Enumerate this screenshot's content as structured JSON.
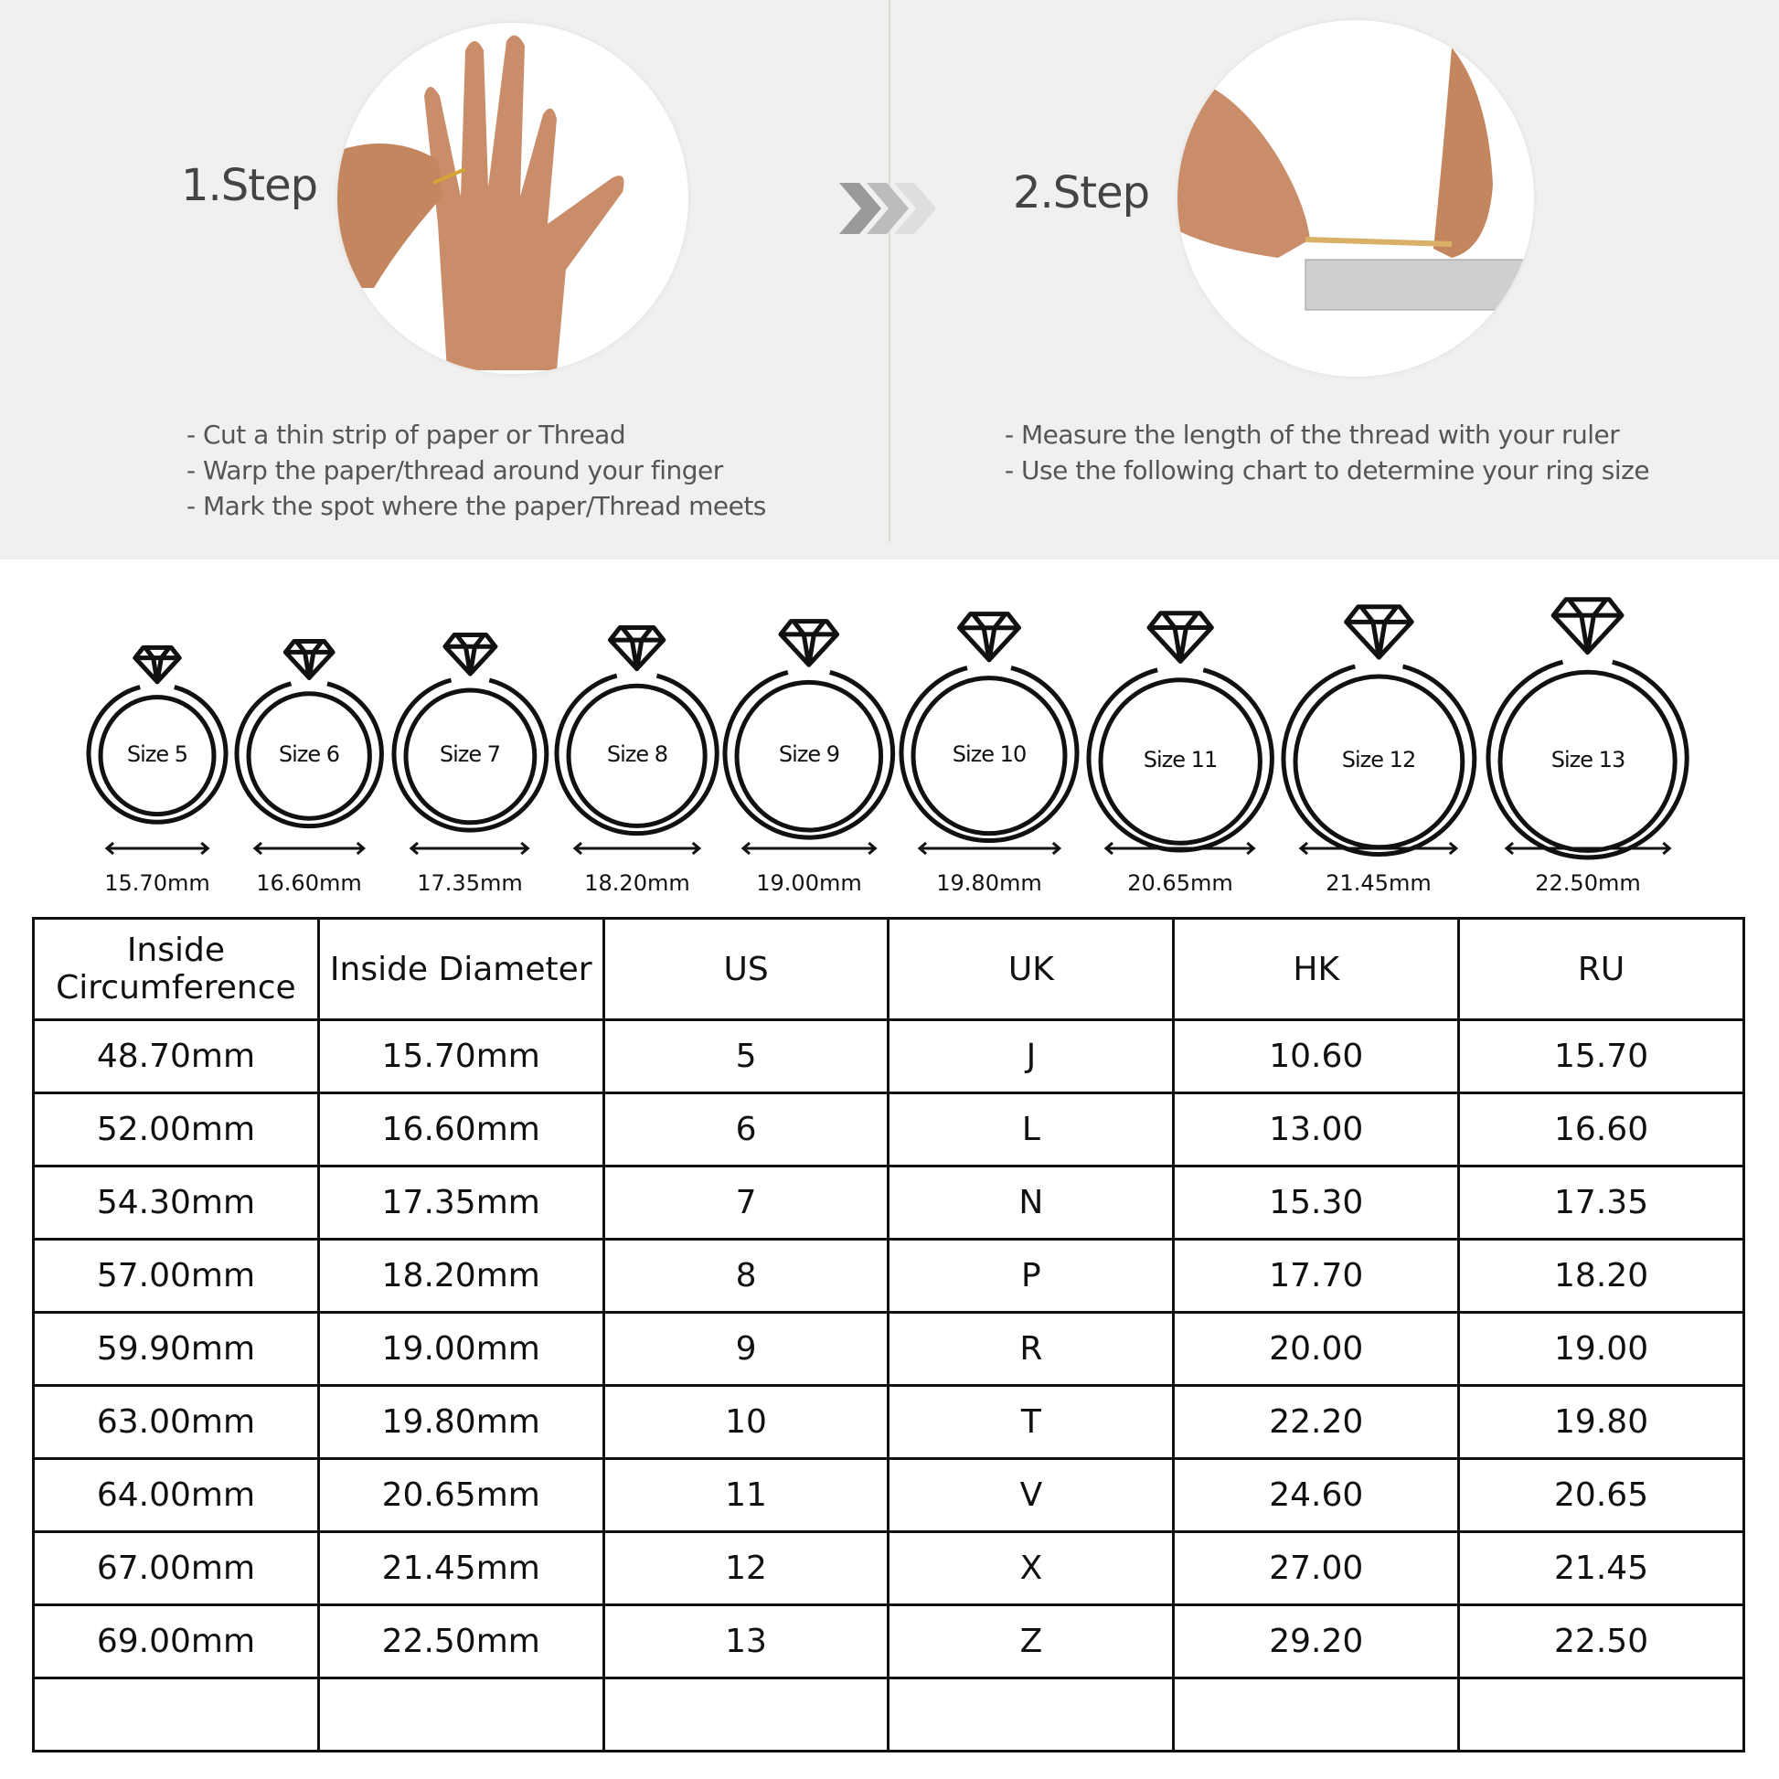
{
  "steps": [
    {
      "label": "1.Step",
      "lines": [
        "- Cut a thin strip of paper or Thread",
        "- Warp the paper/thread around your finger",
        "- Mark the spot where the paper/Thread meets"
      ],
      "image": "hand-wrapping-thread-photo"
    },
    {
      "label": "2.Step",
      "lines": [
        "- Measure the length of the thread with your ruler",
        "- Use the following chart to determine your ring size"
      ],
      "image": "thread-measured-with-ruler-photo"
    }
  ],
  "arrow_icon": "triple-chevron-right-icon",
  "rings": [
    {
      "label": "Size 5",
      "diameter": "15.70mm"
    },
    {
      "label": "Size 6",
      "diameter": "16.60mm"
    },
    {
      "label": "Size 7",
      "diameter": "17.35mm"
    },
    {
      "label": "Size 8",
      "diameter": "18.20mm"
    },
    {
      "label": "Size 9",
      "diameter": "19.00mm"
    },
    {
      "label": "Size 10",
      "diameter": "19.80mm"
    },
    {
      "label": "Size 11",
      "diameter": "20.65mm"
    },
    {
      "label": "Size 12",
      "diameter": "21.45mm"
    },
    {
      "label": "Size 13",
      "diameter": "22.50mm"
    }
  ],
  "table": {
    "headers": [
      "Inside\nCircumference",
      "Inside Diameter",
      "US",
      "UK",
      "HK",
      "RU"
    ],
    "rows": [
      [
        "48.70mm",
        "15.70mm",
        "5",
        "J",
        "10.60",
        "15.70"
      ],
      [
        "52.00mm",
        "16.60mm",
        "6",
        "L",
        "13.00",
        "16.60"
      ],
      [
        "54.30mm",
        "17.35mm",
        "7",
        "N",
        "15.30",
        "17.35"
      ],
      [
        "57.00mm",
        "18.20mm",
        "8",
        "P",
        "17.70",
        "18.20"
      ],
      [
        "59.90mm",
        "19.00mm",
        "9",
        "R",
        "20.00",
        "19.00"
      ],
      [
        "63.00mm",
        "19.80mm",
        "10",
        "T",
        "22.20",
        "19.80"
      ],
      [
        "64.00mm",
        "20.65mm",
        "11",
        "V",
        "24.60",
        "20.65"
      ],
      [
        "67.00mm",
        "21.45mm",
        "12",
        "X",
        "27.00",
        "21.45"
      ],
      [
        "69.00mm",
        "22.50mm",
        "13",
        "Z",
        "29.20",
        "22.50"
      ],
      [
        "",
        "",
        "",
        "",
        "",
        ""
      ]
    ]
  }
}
